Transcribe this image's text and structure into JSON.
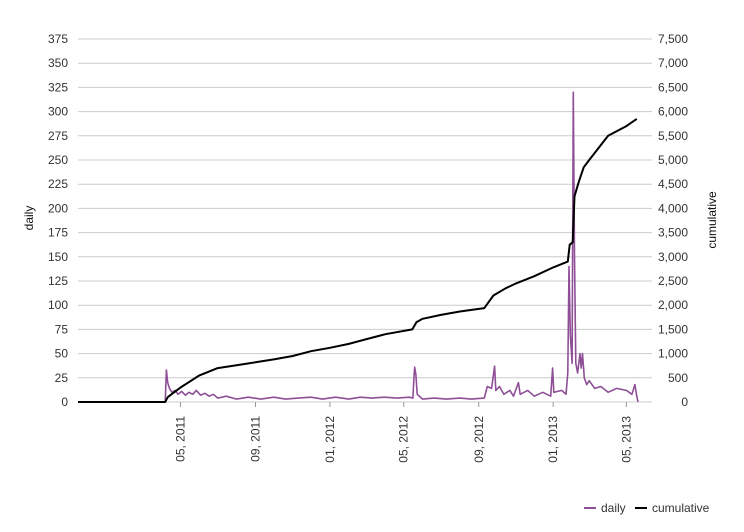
{
  "chart_data": {
    "type": "line",
    "title": "",
    "ylabel_left": "daily",
    "ylabel_right": "cumulative",
    "ylim_left": [
      0,
      375
    ],
    "ylim_right": [
      0,
      7500
    ],
    "y_ticks_left": [
      "0",
      "25",
      "50",
      "75",
      "100",
      "125",
      "150",
      "175",
      "200",
      "225",
      "250",
      "275",
      "300",
      "325",
      "350",
      "375"
    ],
    "y_ticks_right": [
      "0",
      "500",
      "1,000",
      "1,500",
      "2,000",
      "2,500",
      "3,000",
      "3,500",
      "4,000",
      "4,500",
      "5,000",
      "5,500",
      "6,000",
      "6,500",
      "7,000",
      "7,500"
    ],
    "x_range": [
      "2010-11-14",
      "2013-06-12"
    ],
    "x_ticks": [
      {
        "date": "2011-05-01",
        "label": "05, 2011"
      },
      {
        "date": "2011-09-01",
        "label": "09, 2011"
      },
      {
        "date": "2012-01-01",
        "label": "01, 2012"
      },
      {
        "date": "2012-05-01",
        "label": "05, 2012"
      },
      {
        "date": "2012-09-01",
        "label": "09, 2012"
      },
      {
        "date": "2013-01-01",
        "label": "01, 2013"
      },
      {
        "date": "2013-05-01",
        "label": "05, 2013"
      }
    ],
    "grid": true,
    "legend_position": "bottom-right",
    "series": [
      {
        "name": "daily",
        "axis": "left",
        "color": "#8e4f97",
        "points": [
          [
            "2010-11-14",
            0
          ],
          [
            "2011-04-06",
            0
          ],
          [
            "2011-04-08",
            33
          ],
          [
            "2011-04-10",
            20
          ],
          [
            "2011-04-13",
            14
          ],
          [
            "2011-04-17",
            10
          ],
          [
            "2011-04-22",
            12
          ],
          [
            "2011-04-27",
            8
          ],
          [
            "2011-05-03",
            11
          ],
          [
            "2011-05-09",
            7
          ],
          [
            "2011-05-15",
            10
          ],
          [
            "2011-05-21",
            8
          ],
          [
            "2011-05-27",
            12
          ],
          [
            "2011-06-03",
            7
          ],
          [
            "2011-06-10",
            9
          ],
          [
            "2011-06-17",
            6
          ],
          [
            "2011-06-24",
            8
          ],
          [
            "2011-07-01",
            4
          ],
          [
            "2011-07-15",
            6
          ],
          [
            "2011-08-01",
            3
          ],
          [
            "2011-08-20",
            5
          ],
          [
            "2011-09-10",
            3
          ],
          [
            "2011-10-01",
            5
          ],
          [
            "2011-10-20",
            3
          ],
          [
            "2011-11-10",
            4
          ],
          [
            "2011-12-01",
            5
          ],
          [
            "2011-12-20",
            3
          ],
          [
            "2012-01-10",
            5
          ],
          [
            "2012-02-01",
            3
          ],
          [
            "2012-02-20",
            5
          ],
          [
            "2012-03-10",
            4
          ],
          [
            "2012-03-30",
            5
          ],
          [
            "2012-04-20",
            4
          ],
          [
            "2012-05-10",
            5
          ],
          [
            "2012-05-16",
            4
          ],
          [
            "2012-05-18",
            28
          ],
          [
            "2012-05-19",
            36
          ],
          [
            "2012-05-21",
            28
          ],
          [
            "2012-05-23",
            8
          ],
          [
            "2012-06-01",
            3
          ],
          [
            "2012-06-20",
            4
          ],
          [
            "2012-07-10",
            3
          ],
          [
            "2012-08-01",
            4
          ],
          [
            "2012-08-20",
            3
          ],
          [
            "2012-09-10",
            4
          ],
          [
            "2012-09-15",
            16
          ],
          [
            "2012-09-22",
            14
          ],
          [
            "2012-09-27",
            37
          ],
          [
            "2012-09-29",
            12
          ],
          [
            "2012-10-05",
            16
          ],
          [
            "2012-10-12",
            8
          ],
          [
            "2012-10-22",
            12
          ],
          [
            "2012-10-28",
            6
          ],
          [
            "2012-11-05",
            20
          ],
          [
            "2012-11-08",
            8
          ],
          [
            "2012-11-20",
            12
          ],
          [
            "2012-12-01",
            6
          ],
          [
            "2012-12-15",
            10
          ],
          [
            "2012-12-28",
            6
          ],
          [
            "2012-12-31",
            35
          ],
          [
            "2013-01-02",
            10
          ],
          [
            "2013-01-15",
            12
          ],
          [
            "2013-01-22",
            8
          ],
          [
            "2013-01-25",
            30
          ],
          [
            "2013-01-27",
            140
          ],
          [
            "2013-01-29",
            70
          ],
          [
            "2013-02-01",
            40
          ],
          [
            "2013-02-03",
            320
          ],
          [
            "2013-02-05",
            150
          ],
          [
            "2013-02-07",
            40
          ],
          [
            "2013-02-10",
            30
          ],
          [
            "2013-02-14",
            50
          ],
          [
            "2013-02-16",
            35
          ],
          [
            "2013-02-18",
            50
          ],
          [
            "2013-02-21",
            25
          ],
          [
            "2013-02-25",
            18
          ],
          [
            "2013-03-01",
            22
          ],
          [
            "2013-03-10",
            14
          ],
          [
            "2013-03-20",
            16
          ],
          [
            "2013-04-01",
            10
          ],
          [
            "2013-04-15",
            14
          ],
          [
            "2013-05-01",
            12
          ],
          [
            "2013-05-10",
            8
          ],
          [
            "2013-05-15",
            18
          ],
          [
            "2013-05-18",
            6
          ],
          [
            "2013-05-20",
            0
          ]
        ]
      },
      {
        "name": "cumulative",
        "axis": "right",
        "color": "#000000",
        "points": [
          [
            "2010-11-14",
            0
          ],
          [
            "2011-04-06",
            0
          ],
          [
            "2011-04-10",
            100
          ],
          [
            "2011-05-01",
            300
          ],
          [
            "2011-06-01",
            550
          ],
          [
            "2011-07-01",
            700
          ],
          [
            "2011-08-01",
            760
          ],
          [
            "2011-09-01",
            820
          ],
          [
            "2011-10-01",
            880
          ],
          [
            "2011-11-01",
            950
          ],
          [
            "2011-12-01",
            1050
          ],
          [
            "2012-01-01",
            1120
          ],
          [
            "2012-02-01",
            1200
          ],
          [
            "2012-03-01",
            1300
          ],
          [
            "2012-04-01",
            1400
          ],
          [
            "2012-05-15",
            1500
          ],
          [
            "2012-05-22",
            1650
          ],
          [
            "2012-06-01",
            1720
          ],
          [
            "2012-07-01",
            1800
          ],
          [
            "2012-08-01",
            1870
          ],
          [
            "2012-09-10",
            1940
          ],
          [
            "2012-09-25",
            2200
          ],
          [
            "2012-10-15",
            2350
          ],
          [
            "2012-11-01",
            2450
          ],
          [
            "2012-12-01",
            2600
          ],
          [
            "2013-01-01",
            2780
          ],
          [
            "2013-01-25",
            2900
          ],
          [
            "2013-01-28",
            3250
          ],
          [
            "2013-02-02",
            3300
          ],
          [
            "2013-02-05",
            4250
          ],
          [
            "2013-02-12",
            4550
          ],
          [
            "2013-02-20",
            4850
          ],
          [
            "2013-03-01",
            5000
          ],
          [
            "2013-04-01",
            5500
          ],
          [
            "2013-05-01",
            5700
          ],
          [
            "2013-05-18",
            5850
          ]
        ]
      }
    ]
  }
}
